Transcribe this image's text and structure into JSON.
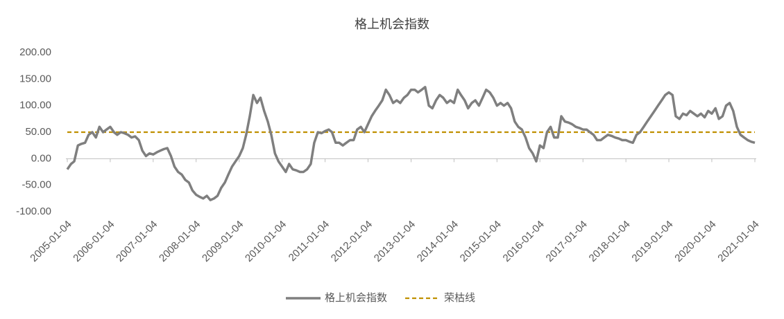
{
  "chart_data": {
    "type": "line",
    "title": "格上机会指数",
    "x": [
      "2005-01-04",
      "2005-02-04",
      "2005-03-04",
      "2005-04-04",
      "2005-05-04",
      "2005-06-04",
      "2005-07-04",
      "2005-08-04",
      "2005-09-04",
      "2005-10-04",
      "2005-11-04",
      "2005-12-04",
      "2006-01-04",
      "2006-02-04",
      "2006-03-04",
      "2006-04-04",
      "2006-05-04",
      "2006-06-04",
      "2006-07-04",
      "2006-08-04",
      "2006-09-04",
      "2006-10-04",
      "2006-11-04",
      "2006-12-04",
      "2007-01-04",
      "2007-02-04",
      "2007-03-04",
      "2007-04-04",
      "2007-05-04",
      "2007-06-04",
      "2007-07-04",
      "2007-08-04",
      "2007-09-04",
      "2007-10-04",
      "2007-11-04",
      "2007-12-04",
      "2008-01-04",
      "2008-02-04",
      "2008-03-04",
      "2008-04-04",
      "2008-05-04",
      "2008-06-04",
      "2008-07-04",
      "2008-08-04",
      "2008-09-04",
      "2008-10-04",
      "2008-11-04",
      "2008-12-04",
      "2009-01-04",
      "2009-02-04",
      "2009-03-04",
      "2009-04-04",
      "2009-05-04",
      "2009-06-04",
      "2009-07-04",
      "2009-08-04",
      "2009-09-04",
      "2009-10-04",
      "2009-11-04",
      "2009-12-04",
      "2010-01-04",
      "2010-02-04",
      "2010-03-04",
      "2010-04-04",
      "2010-05-04",
      "2010-06-04",
      "2010-07-04",
      "2010-08-04",
      "2010-09-04",
      "2010-10-04",
      "2010-11-04",
      "2010-12-04",
      "2011-01-04",
      "2011-02-04",
      "2011-03-04",
      "2011-04-04",
      "2011-05-04",
      "2011-06-04",
      "2011-07-04",
      "2011-08-04",
      "2011-09-04",
      "2011-10-04",
      "2011-11-04",
      "2011-12-04",
      "2012-01-04",
      "2012-02-04",
      "2012-03-04",
      "2012-04-04",
      "2012-05-04",
      "2012-06-04",
      "2012-07-04",
      "2012-08-04",
      "2012-09-04",
      "2012-10-04",
      "2012-11-04",
      "2012-12-04",
      "2013-01-04",
      "2013-02-04",
      "2013-03-04",
      "2013-04-04",
      "2013-05-04",
      "2013-06-04",
      "2013-07-04",
      "2013-08-04",
      "2013-09-04",
      "2013-10-04",
      "2013-11-04",
      "2013-12-04",
      "2014-01-04",
      "2014-02-04",
      "2014-03-04",
      "2014-04-04",
      "2014-05-04",
      "2014-06-04",
      "2014-07-04",
      "2014-08-04",
      "2014-09-04",
      "2014-10-04",
      "2014-11-04",
      "2014-12-04",
      "2015-01-04",
      "2015-02-04",
      "2015-03-04",
      "2015-04-04",
      "2015-05-04",
      "2015-06-04",
      "2015-07-04",
      "2015-08-04",
      "2015-09-04",
      "2015-10-04",
      "2015-11-04",
      "2015-12-04",
      "2016-01-04",
      "2016-02-04",
      "2016-03-04",
      "2016-04-04",
      "2016-05-04",
      "2016-06-04",
      "2016-07-04",
      "2016-08-04",
      "2016-09-04",
      "2016-10-04",
      "2016-11-04",
      "2016-12-04",
      "2017-01-04",
      "2017-02-04",
      "2017-03-04",
      "2017-04-04",
      "2017-05-04",
      "2017-06-04",
      "2017-07-04",
      "2017-08-04",
      "2017-09-04",
      "2017-10-04",
      "2017-11-04",
      "2017-12-04",
      "2018-01-04",
      "2018-02-04",
      "2018-03-04",
      "2018-04-04",
      "2018-05-04",
      "2018-06-04",
      "2018-07-04",
      "2018-08-04",
      "2018-09-04",
      "2018-10-04",
      "2018-11-04",
      "2018-12-04",
      "2019-01-04",
      "2019-02-04",
      "2019-03-04",
      "2019-04-04",
      "2019-05-04",
      "2019-06-04",
      "2019-07-04",
      "2019-08-04",
      "2019-09-04",
      "2019-10-04",
      "2019-11-04",
      "2019-12-04",
      "2020-01-04",
      "2020-02-04",
      "2020-03-04",
      "2020-04-04",
      "2020-05-04",
      "2020-06-04",
      "2020-07-04",
      "2020-08-04",
      "2020-09-04",
      "2020-10-04",
      "2020-11-04",
      "2020-12-04",
      "2021-01-04"
    ],
    "series": [
      {
        "name": "格上机会指数",
        "color": "#7f7f7f",
        "values": [
          -20,
          -10,
          -5,
          25,
          28,
          30,
          45,
          50,
          40,
          60,
          50,
          55,
          60,
          50,
          45,
          50,
          48,
          45,
          40,
          42,
          35,
          15,
          5,
          10,
          8,
          12,
          15,
          18,
          20,
          5,
          -15,
          -25,
          -30,
          -40,
          -45,
          -60,
          -68,
          -72,
          -75,
          -70,
          -78,
          -75,
          -70,
          -55,
          -45,
          -30,
          -15,
          -5,
          5,
          20,
          45,
          80,
          120,
          105,
          115,
          90,
          70,
          45,
          10,
          -5,
          -15,
          -25,
          -10,
          -20,
          -22,
          -25,
          -25,
          -20,
          -10,
          30,
          50,
          48,
          52,
          55,
          50,
          30,
          30,
          25,
          30,
          35,
          35,
          55,
          60,
          50,
          65,
          80,
          90,
          100,
          110,
          130,
          120,
          105,
          110,
          105,
          115,
          120,
          130,
          130,
          125,
          130,
          135,
          100,
          95,
          110,
          120,
          115,
          105,
          110,
          105,
          130,
          120,
          110,
          95,
          105,
          110,
          100,
          115,
          130,
          125,
          115,
          100,
          105,
          100,
          105,
          95,
          70,
          60,
          55,
          40,
          20,
          10,
          -5,
          25,
          20,
          50,
          60,
          40,
          40,
          80,
          70,
          68,
          65,
          60,
          58,
          55,
          55,
          50,
          45,
          35,
          35,
          40,
          45,
          43,
          40,
          38,
          35,
          35,
          32,
          30,
          45,
          50,
          60,
          70,
          80,
          90,
          100,
          110,
          120,
          125,
          120,
          80,
          75,
          85,
          82,
          90,
          85,
          80,
          85,
          78,
          90,
          85,
          95,
          75,
          80,
          100,
          105,
          90,
          60,
          45,
          40,
          35,
          32,
          30
        ]
      }
    ],
    "hlines": [
      {
        "name": "荣枯线",
        "value": 50,
        "color": "#bf9000"
      }
    ],
    "xlim": [
      "2005-01-04",
      "2021-01-04"
    ],
    "xticks": [
      "2005-01-04",
      "2006-01-04",
      "2007-01-04",
      "2008-01-04",
      "2009-01-04",
      "2010-01-04",
      "2011-01-04",
      "2012-01-04",
      "2013-01-04",
      "2014-01-04",
      "2015-01-04",
      "2016-01-04",
      "2017-01-04",
      "2018-01-04",
      "2019-01-04",
      "2020-01-04",
      "2021-01-04"
    ],
    "ylim": [
      -100,
      200
    ],
    "yticks": [
      {
        "value": -100,
        "label": "-100.00"
      },
      {
        "value": -50,
        "label": "-50.00"
      },
      {
        "value": 0,
        "label": "0.00"
      },
      {
        "value": 50,
        "label": "50.00"
      },
      {
        "value": 100,
        "label": "100.00"
      },
      {
        "value": 150,
        "label": "150.00"
      },
      {
        "value": 200,
        "label": "200.00"
      }
    ],
    "legend": "bottom"
  }
}
